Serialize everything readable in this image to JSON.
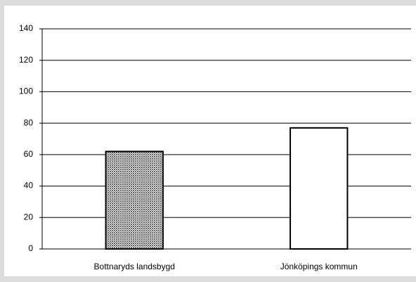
{
  "chart_data": {
    "type": "bar",
    "categories": [
      "Bottnaryds landsbygd",
      "Jönköpings kommun"
    ],
    "values": [
      62,
      77
    ],
    "colors": [
      "#606060",
      "#ffffff"
    ],
    "ylim": [
      0,
      140
    ],
    "yticks": [
      0,
      20,
      40,
      60,
      80,
      100,
      120,
      140
    ],
    "grid": true
  }
}
